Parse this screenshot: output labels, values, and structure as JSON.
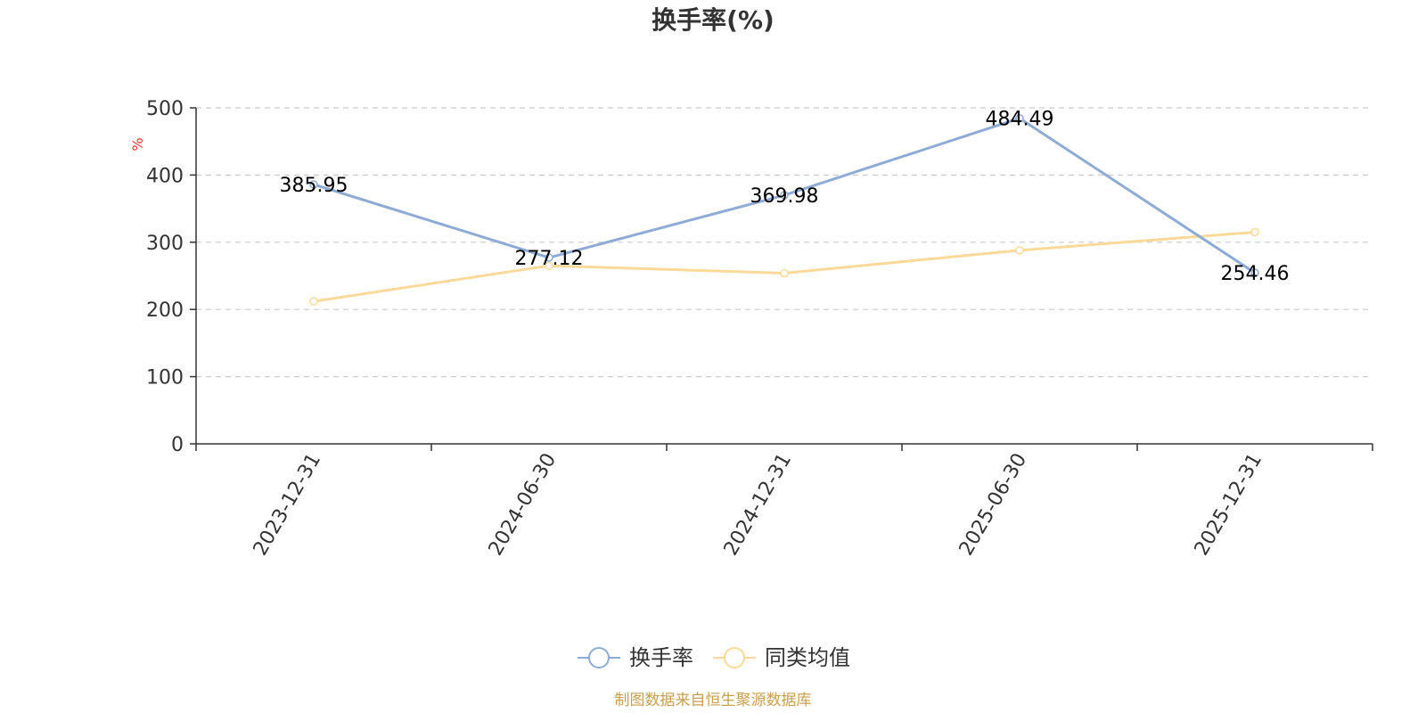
{
  "chart_data": {
    "type": "line",
    "title": "换手率(%)",
    "ylabel": "%",
    "xlabel": "",
    "ylim": [
      0,
      500
    ],
    "yticks": [
      0,
      100,
      200,
      300,
      400,
      500
    ],
    "categories": [
      "2023-12-31",
      "2024-06-30",
      "2024-12-31",
      "2025-06-30",
      "2025-12-31"
    ],
    "grid": true,
    "legend_position": "bottom",
    "series": [
      {
        "name": "换手率",
        "values": [
          385.95,
          277.12,
          369.98,
          484.49,
          254.46
        ],
        "data_labels": [
          "385.95",
          "277.12",
          "369.98",
          "484.49",
          "254.46"
        ],
        "color": "#8eabd5"
      },
      {
        "name": "同类均值",
        "values": [
          212,
          265,
          254,
          288,
          315
        ],
        "color": "#fad99a"
      }
    ]
  },
  "source": "制图数据来自恒生聚源数据库",
  "colors": {
    "unit_label": "#e8322d",
    "source": "#c8a050",
    "axis": "#333333",
    "grid": "#cccccc"
  }
}
